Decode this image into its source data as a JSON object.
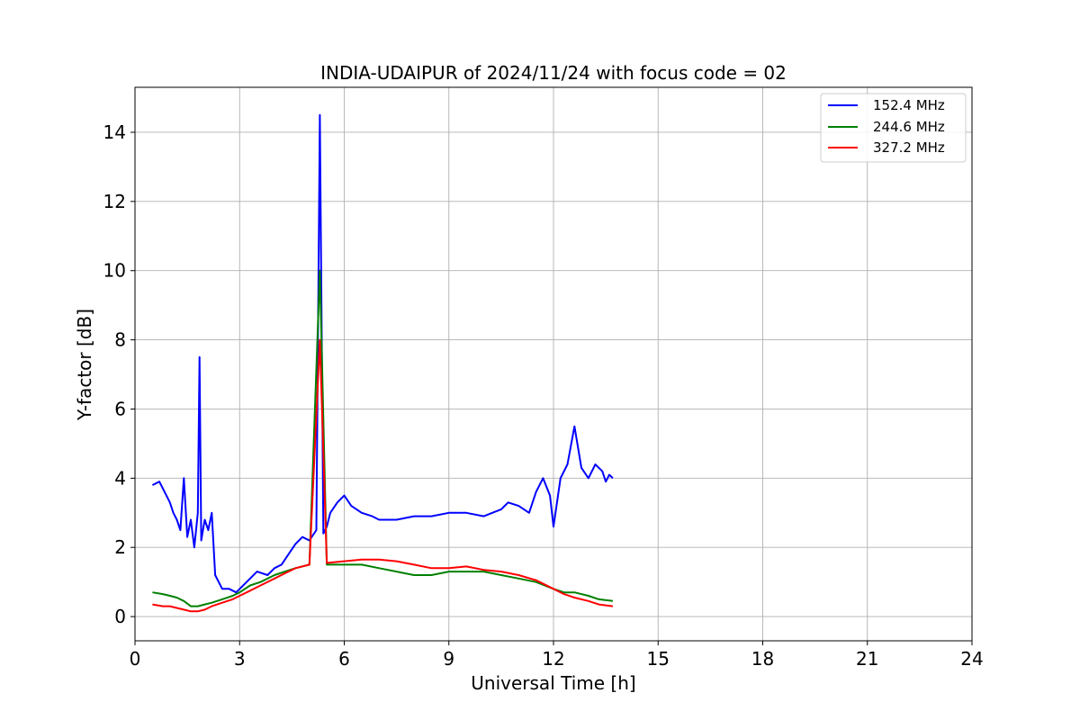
{
  "chart_data": {
    "type": "line",
    "title": "INDIA-UDAIPUR of 2024/11/24 with focus code = 02",
    "xlabel": "Universal Time [h]",
    "ylabel": "Y-factor [dB]",
    "xlim": [
      0,
      24
    ],
    "ylim": [
      -0.7,
      15.3
    ],
    "xticks": [
      "0",
      "3",
      "6",
      "9",
      "12",
      "15",
      "18",
      "21",
      "24"
    ],
    "yticks": [
      "0",
      "2",
      "4",
      "6",
      "8",
      "10",
      "12",
      "14"
    ],
    "grid": true,
    "legend_position": "top-right",
    "series": [
      {
        "name": "152.4 MHz",
        "color": "#0000ff",
        "x": [
          0.5,
          0.7,
          0.9,
          1.0,
          1.1,
          1.2,
          1.3,
          1.4,
          1.5,
          1.6,
          1.7,
          1.8,
          1.85,
          1.9,
          2.0,
          2.1,
          2.2,
          2.3,
          2.5,
          2.7,
          2.9,
          3.2,
          3.5,
          3.8,
          4.0,
          4.2,
          4.4,
          4.6,
          4.8,
          5.0,
          5.2,
          5.3,
          5.4,
          5.5,
          5.6,
          5.8,
          6.0,
          6.2,
          6.5,
          6.8,
          7.0,
          7.5,
          8.0,
          8.5,
          9.0,
          9.5,
          10.0,
          10.5,
          10.7,
          11.0,
          11.3,
          11.5,
          11.7,
          11.9,
          12.0,
          12.2,
          12.4,
          12.6,
          12.8,
          13.0,
          13.2,
          13.4,
          13.5,
          13.6,
          13.7
        ],
        "y": [
          3.8,
          3.9,
          3.5,
          3.3,
          3.0,
          2.8,
          2.5,
          4.0,
          2.3,
          2.8,
          2.0,
          3.0,
          7.5,
          2.2,
          2.8,
          2.5,
          3.0,
          1.2,
          0.8,
          0.8,
          0.7,
          1.0,
          1.3,
          1.2,
          1.4,
          1.5,
          1.8,
          2.1,
          2.3,
          2.2,
          2.5,
          14.5,
          2.4,
          2.6,
          3.0,
          3.3,
          3.5,
          3.2,
          3.0,
          2.9,
          2.8,
          2.8,
          2.9,
          2.9,
          3.0,
          3.0,
          2.9,
          3.1,
          3.3,
          3.2,
          3.0,
          3.6,
          4.0,
          3.5,
          2.6,
          4.0,
          4.4,
          5.5,
          4.3,
          4.0,
          4.4,
          4.2,
          3.9,
          4.1,
          4.0
        ]
      },
      {
        "name": "244.6 MHz",
        "color": "#008000",
        "x": [
          0.5,
          0.8,
          1.0,
          1.2,
          1.4,
          1.6,
          1.8,
          2.0,
          2.2,
          2.5,
          2.8,
          3.0,
          3.3,
          3.6,
          4.0,
          4.3,
          4.6,
          5.0,
          5.3,
          5.5,
          6.0,
          6.5,
          7.0,
          7.5,
          8.0,
          8.5,
          9.0,
          9.5,
          10.0,
          10.5,
          11.0,
          11.5,
          12.0,
          12.3,
          12.6,
          13.0,
          13.3,
          13.7
        ],
        "y": [
          0.7,
          0.65,
          0.6,
          0.55,
          0.45,
          0.3,
          0.3,
          0.35,
          0.4,
          0.5,
          0.6,
          0.7,
          0.9,
          1.0,
          1.2,
          1.3,
          1.4,
          1.5,
          10.0,
          1.5,
          1.5,
          1.5,
          1.4,
          1.3,
          1.2,
          1.2,
          1.3,
          1.3,
          1.3,
          1.2,
          1.1,
          1.0,
          0.8,
          0.7,
          0.7,
          0.6,
          0.5,
          0.45
        ]
      },
      {
        "name": "327.2 MHz",
        "color": "#ff0000",
        "x": [
          0.5,
          0.8,
          1.0,
          1.2,
          1.4,
          1.6,
          1.8,
          2.0,
          2.2,
          2.5,
          2.8,
          3.0,
          3.3,
          3.6,
          4.0,
          4.3,
          4.6,
          5.0,
          5.3,
          5.5,
          6.0,
          6.5,
          7.0,
          7.5,
          8.0,
          8.5,
          9.0,
          9.5,
          10.0,
          10.5,
          11.0,
          11.5,
          12.0,
          12.3,
          12.6,
          13.0,
          13.3,
          13.7
        ],
        "y": [
          0.35,
          0.3,
          0.3,
          0.25,
          0.2,
          0.15,
          0.15,
          0.2,
          0.3,
          0.4,
          0.5,
          0.6,
          0.75,
          0.9,
          1.1,
          1.25,
          1.4,
          1.5,
          8.0,
          1.55,
          1.6,
          1.65,
          1.65,
          1.6,
          1.5,
          1.4,
          1.4,
          1.45,
          1.35,
          1.3,
          1.2,
          1.05,
          0.8,
          0.65,
          0.55,
          0.45,
          0.35,
          0.3
        ]
      }
    ]
  }
}
